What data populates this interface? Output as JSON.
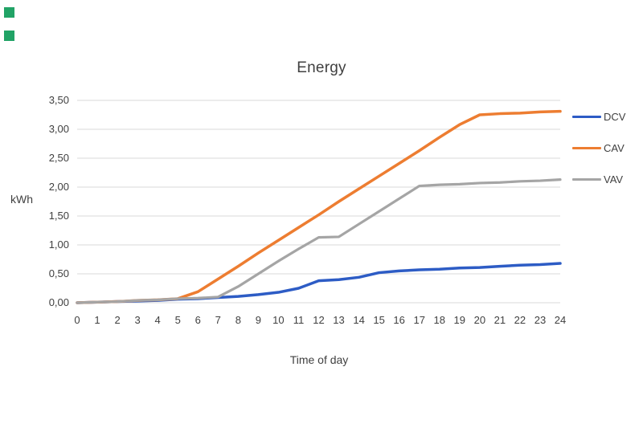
{
  "page": {
    "background": "#ffffff",
    "text_color": "#404040"
  },
  "decorations": {
    "green_squares": [
      {
        "color": "#21A366"
      },
      {
        "color": "#21A366"
      }
    ]
  },
  "chart_data": {
    "type": "line",
    "title": "Energy",
    "xlabel": "Time of day",
    "ylabel": "kWh",
    "x": [
      0,
      1,
      2,
      3,
      4,
      5,
      6,
      7,
      8,
      9,
      10,
      11,
      12,
      13,
      14,
      15,
      16,
      17,
      18,
      19,
      20,
      21,
      22,
      23,
      24
    ],
    "xtick_labels": [
      "0",
      "1",
      "2",
      "3",
      "4",
      "5",
      "6",
      "7",
      "8",
      "9",
      "10",
      "11",
      "12",
      "13",
      "14",
      "15",
      "16",
      "17",
      "18",
      "19",
      "20",
      "21",
      "22",
      "23",
      "24"
    ],
    "ytick_labels": [
      "0,00",
      "0,50",
      "1,00",
      "1,50",
      "2,00",
      "2,50",
      "3,00",
      "3,50"
    ],
    "ytick_values": [
      0,
      0.5,
      1.0,
      1.5,
      2.0,
      2.5,
      3.0,
      3.5
    ],
    "ylim": [
      0,
      3.5
    ],
    "xlim": [
      0,
      24
    ],
    "grid": true,
    "grid_color": "#D9D9D9",
    "legend_position": "right",
    "series": [
      {
        "name": "DCV",
        "color": "#2D5CC5",
        "values": [
          0.0,
          0.01,
          0.02,
          0.03,
          0.04,
          0.06,
          0.07,
          0.09,
          0.11,
          0.14,
          0.18,
          0.25,
          0.38,
          0.4,
          0.44,
          0.52,
          0.55,
          0.57,
          0.58,
          0.6,
          0.61,
          0.63,
          0.65,
          0.66,
          0.68
        ]
      },
      {
        "name": "CAV",
        "color": "#ED7D31",
        "values": [
          0.0,
          0.01,
          0.02,
          0.04,
          0.05,
          0.07,
          0.19,
          0.41,
          0.63,
          0.86,
          1.08,
          1.3,
          1.52,
          1.75,
          1.97,
          2.19,
          2.41,
          2.63,
          2.86,
          3.08,
          3.25,
          3.27,
          3.28,
          3.3,
          3.31
        ]
      },
      {
        "name": "VAV",
        "color": "#A5A5A5",
        "values": [
          0.0,
          0.01,
          0.02,
          0.04,
          0.05,
          0.07,
          0.08,
          0.1,
          0.28,
          0.5,
          0.72,
          0.93,
          1.13,
          1.14,
          1.36,
          1.58,
          1.8,
          2.02,
          2.04,
          2.05,
          2.07,
          2.08,
          2.1,
          2.11,
          2.13
        ]
      }
    ]
  }
}
